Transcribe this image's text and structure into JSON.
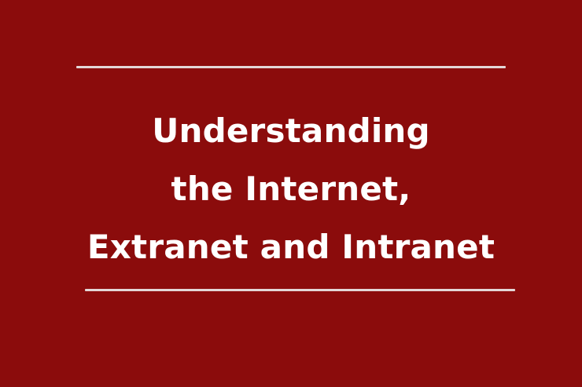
{
  "title": {
    "line1": "Understanding",
    "line2": "the Internet,",
    "line3": "Extranet and Intranet"
  },
  "colors": {
    "background": "#8b0c0c",
    "text": "#ffffff",
    "rule": "#e3d7d7"
  }
}
